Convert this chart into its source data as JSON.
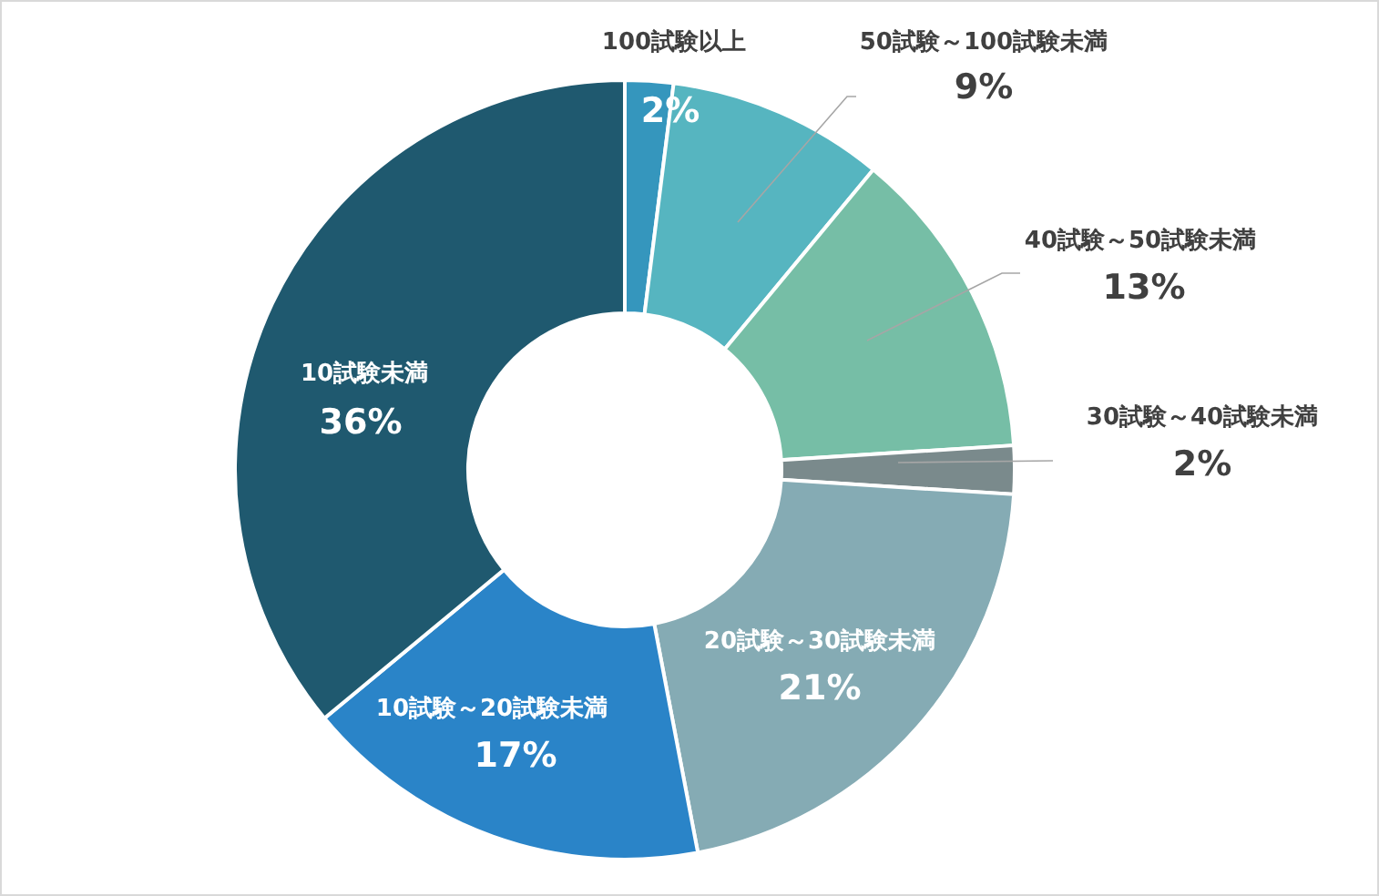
{
  "chart_data": {
    "type": "donut",
    "categories": [
      "100試験以上",
      "50試験～100試験未満",
      "40試験～50試験未満",
      "30試験～40試験未満",
      "20試験～30試験未満",
      "10試験～20試験未満",
      "10試験未満"
    ],
    "values": [
      2,
      9,
      13,
      2,
      21,
      17,
      36
    ],
    "value_labels": [
      "2%",
      "9%",
      "13%",
      "2%",
      "21%",
      "17%",
      "36%"
    ],
    "colors": [
      "#3596bd",
      "#56b5c0",
      "#76bea6",
      "#7a8a8c",
      "#85abb4",
      "#2a84c8",
      "#1f596f"
    ]
  }
}
